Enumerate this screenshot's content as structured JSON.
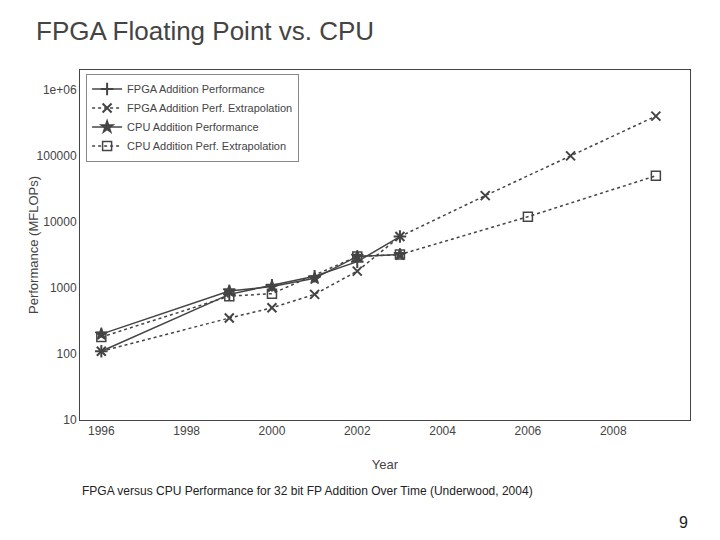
{
  "chart_data": {
    "type": "line",
    "title": "FPGA Floating Point vs. CPU",
    "subtitle": "FPGA versus CPU Performance for 32 bit FP Addition Over Time (Underwood, 2004)",
    "x_label": "Year",
    "y_label": "Performance (MFLOPs)",
    "annotations": [
      "9"
    ],
    "log": "y",
    "grid": false,
    "legend": "upper left",
    "xlim": [
      1995.5,
      2009.8
    ],
    "xticks": [
      1996,
      1998,
      2000,
      2002,
      2004,
      2006,
      2008
    ],
    "ylim": [
      10,
      2000000
    ],
    "yticks": [
      10,
      100,
      1000,
      10000,
      100000,
      {
        "value": 1000000,
        "label": "1e+06"
      }
    ],
    "series": [
      {
        "name": "FPGA Addition Performance",
        "color": "#444444",
        "marker": "plus",
        "line_style": "solid",
        "x": [
          1996,
          1999,
          2000,
          2001,
          2002,
          2003
        ],
        "values": [
          110,
          800,
          1100,
          1500,
          2500,
          6000
        ]
      },
      {
        "name": "FPGA Addition Perf. Extrapolation",
        "color": "#444444",
        "marker": "x",
        "line_style": "dotted",
        "x": [
          1996,
          1999,
          2000,
          2001,
          2002,
          2003,
          2005,
          2007,
          2009
        ],
        "values": [
          110,
          350,
          500,
          800,
          1800,
          6000,
          25000,
          100000,
          400000
        ]
      },
      {
        "name": "CPU Addition Performance",
        "color": "#444444",
        "marker": "star",
        "line_style": "solid",
        "x": [
          1996,
          1999,
          2000,
          2001,
          2002,
          2003
        ],
        "values": [
          200,
          900,
          1050,
          1400,
          3000,
          3200
        ]
      },
      {
        "name": "CPU Addition Perf. Extrapolation",
        "color": "#444444",
        "marker": "square-open",
        "line_style": "dotted",
        "x": [
          1996,
          1999,
          2000,
          2002,
          2003,
          2006,
          2009
        ],
        "values": [
          180,
          750,
          820,
          3000,
          3200,
          12000,
          50000
        ]
      }
    ]
  }
}
